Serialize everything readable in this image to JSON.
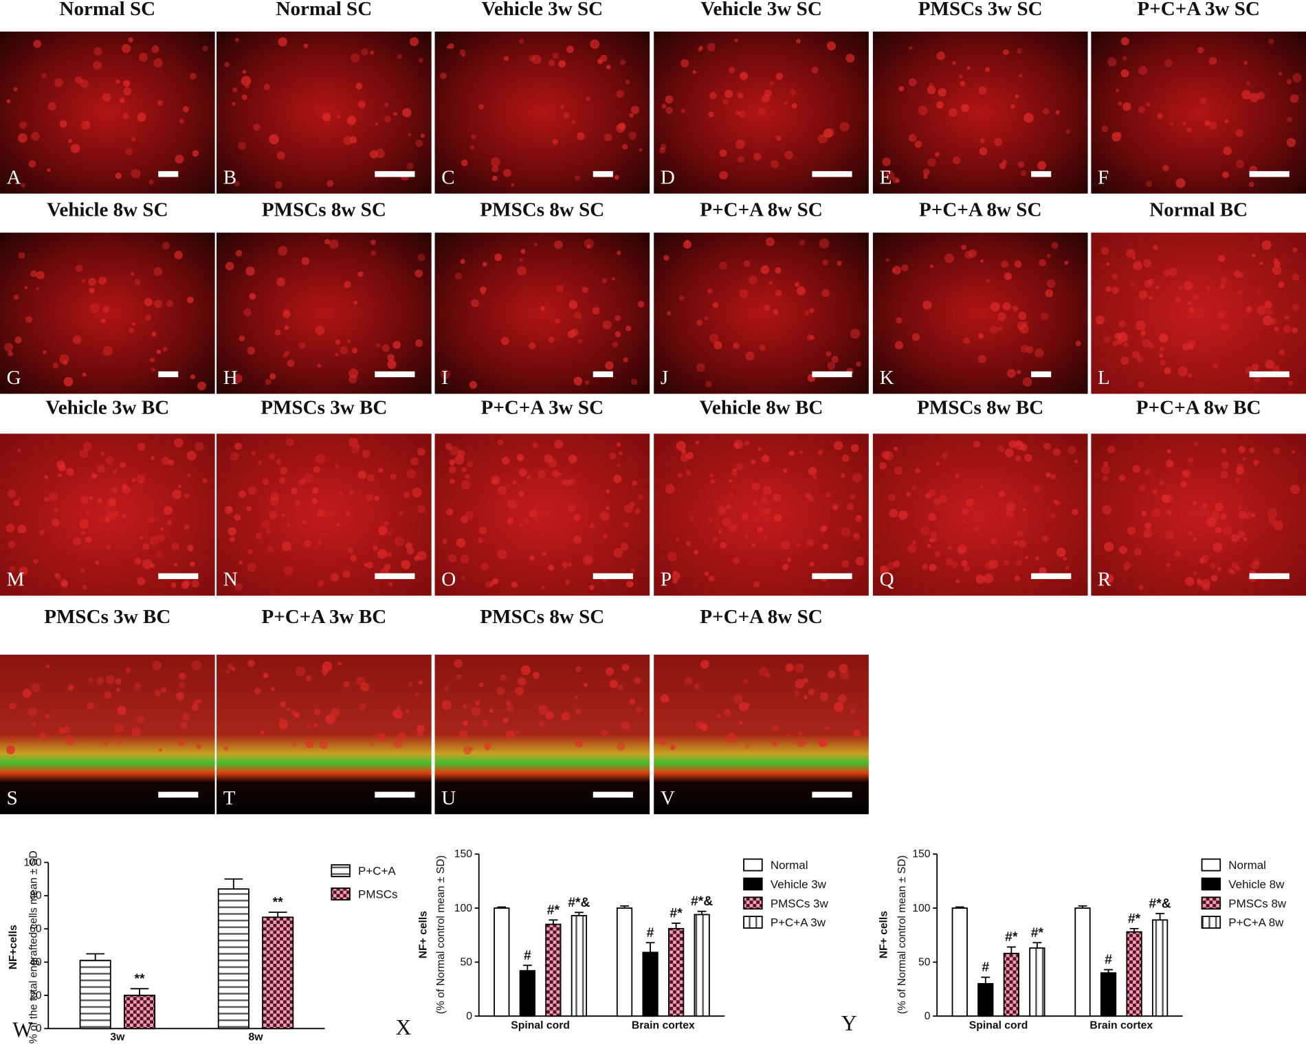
{
  "panels": [
    {
      "title": "Normal SC",
      "letter": "A"
    },
    {
      "title": "Normal SC",
      "letter": "B"
    },
    {
      "title": "Vehicle 3w SC",
      "letter": "C"
    },
    {
      "title": "Vehicle 3w SC",
      "letter": "D"
    },
    {
      "title": "PMSCs 3w SC",
      "letter": "E"
    },
    {
      "title": "P+C+A 3w SC",
      "letter": "F"
    },
    {
      "title": "Vehicle 8w SC",
      "letter": "G"
    },
    {
      "title": "PMSCs 8w SC",
      "letter": "H"
    },
    {
      "title": "PMSCs 8w SC",
      "letter": "I"
    },
    {
      "title": "P+C+A 8w SC",
      "letter": "J"
    },
    {
      "title": "P+C+A 8w SC",
      "letter": "K"
    },
    {
      "title": "Normal BC",
      "letter": "L"
    },
    {
      "title": "Vehicle 3w BC",
      "letter": "M"
    },
    {
      "title": "PMSCs 3w BC",
      "letter": "N"
    },
    {
      "title": "P+C+A 3w SC",
      "letter": "O"
    },
    {
      "title": "Vehicle 8w BC",
      "letter": "P"
    },
    {
      "title": "PMSCs 8w BC",
      "letter": "Q"
    },
    {
      "title": "P+C+A 8w BC",
      "letter": "R"
    },
    {
      "title": "PMSCs 3w BC",
      "letter": "S"
    },
    {
      "title": "P+C+A 3w BC",
      "letter": "T"
    },
    {
      "title": "PMSCs 8w SC",
      "letter": "U"
    },
    {
      "title": "P+C+A 8w SC",
      "letter": "V"
    }
  ],
  "chart_data": [
    {
      "type": "bar",
      "label": "W",
      "ylabel": "NF+cells",
      "ylabel2": "% of the total engrafted cells mean ± SD",
      "categories": [
        "3w",
        "8w"
      ],
      "ylim": [
        0,
        100
      ],
      "yticks": [
        0,
        20,
        40,
        60,
        80,
        100
      ],
      "series": [
        {
          "name": "P+C+A",
          "color": "#ffffff",
          "pattern": "hstripe",
          "values": [
            41,
            84
          ],
          "errors": [
            4,
            6
          ]
        },
        {
          "name": "PMSCs",
          "color": "#e8a0b4",
          "pattern": "check",
          "values": [
            20,
            67
          ],
          "errors": [
            4,
            3
          ],
          "annotations": [
            "**",
            "**"
          ]
        }
      ]
    },
    {
      "type": "bar",
      "label": "X",
      "ylabel": "NF+ cells",
      "ylabel2": "(% of Normal control mean ± SD)",
      "categories": [
        "Spinal cord",
        "Brain cortex"
      ],
      "ylim": [
        0,
        150
      ],
      "yticks": [
        0,
        50,
        100,
        150
      ],
      "series": [
        {
          "name": "Normal",
          "color": "#ffffff",
          "pattern": "solid",
          "values": [
            100,
            100
          ],
          "errors": [
            1,
            2
          ]
        },
        {
          "name": "Vehicle 3w",
          "color": "#000000",
          "pattern": "solid",
          "values": [
            42,
            59
          ],
          "errors": [
            5,
            9
          ],
          "annotations": [
            "#",
            "#"
          ]
        },
        {
          "name": "PMSCs 3w",
          "color": "#e8a0b4",
          "pattern": "check",
          "values": [
            85,
            81
          ],
          "errors": [
            4,
            5
          ],
          "annotations": [
            "#*",
            "#*"
          ]
        },
        {
          "name": "P+C+A 3w",
          "color": "#ffffff",
          "pattern": "vstripe",
          "values": [
            93,
            94
          ],
          "errors": [
            3,
            3
          ],
          "annotations": [
            "#*&",
            "#*&"
          ]
        }
      ]
    },
    {
      "type": "bar",
      "label": "Y",
      "ylabel": "NF+ cells",
      "ylabel2": "(% of Normal control mean ± SD)",
      "categories": [
        "Spinal cord",
        "Brain cortex"
      ],
      "ylim": [
        0,
        150
      ],
      "yticks": [
        0,
        50,
        100,
        150
      ],
      "series": [
        {
          "name": "Normal",
          "color": "#ffffff",
          "pattern": "solid",
          "values": [
            100,
            100
          ],
          "errors": [
            1,
            2
          ]
        },
        {
          "name": "Vehicle 8w",
          "color": "#000000",
          "pattern": "solid",
          "values": [
            30,
            40
          ],
          "errors": [
            6,
            3
          ],
          "annotations": [
            "#",
            "#"
          ]
        },
        {
          "name": "PMSCs 8w",
          "color": "#e8a0b4",
          "pattern": "check",
          "values": [
            58,
            78
          ],
          "errors": [
            6,
            3
          ],
          "annotations": [
            "#*",
            "#*"
          ]
        },
        {
          "name": "P+C+A 8w",
          "color": "#ffffff",
          "pattern": "vstripe",
          "values": [
            63,
            89
          ],
          "errors": [
            5,
            6
          ],
          "annotations": [
            "#*",
            "#*&"
          ]
        }
      ]
    }
  ]
}
